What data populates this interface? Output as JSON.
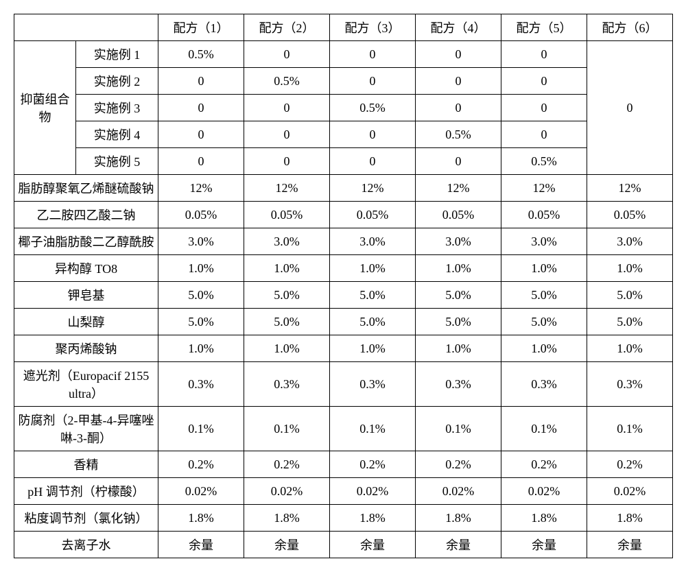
{
  "table": {
    "columns": [
      "",
      "",
      "配方（1）",
      "配方（2）",
      "配方（3）",
      "配方（4）",
      "配方（5）",
      "配方（6）"
    ],
    "group_label": "抑菌组合物",
    "group_rows": [
      {
        "name": "实施例 1",
        "vals": [
          "0.5%",
          "0",
          "0",
          "0",
          "0"
        ]
      },
      {
        "name": "实施例 2",
        "vals": [
          "0",
          "0.5%",
          "0",
          "0",
          "0"
        ]
      },
      {
        "name": "实施例 3",
        "vals": [
          "0",
          "0",
          "0.5%",
          "0",
          "0"
        ]
      },
      {
        "name": "实施例 4",
        "vals": [
          "0",
          "0",
          "0",
          "0.5%",
          "0"
        ]
      },
      {
        "name": "实施例 5",
        "vals": [
          "0",
          "0",
          "0",
          "0",
          "0.5%"
        ]
      }
    ],
    "group_last_col": "0",
    "rows": [
      {
        "name": "脂肪醇聚氧乙烯醚硫酸钠",
        "vals": [
          "12%",
          "12%",
          "12%",
          "12%",
          "12%",
          "12%"
        ]
      },
      {
        "name": "乙二胺四乙酸二钠",
        "vals": [
          "0.05%",
          "0.05%",
          "0.05%",
          "0.05%",
          "0.05%",
          "0.05%"
        ]
      },
      {
        "name": "椰子油脂肪酸二乙醇酰胺",
        "vals": [
          "3.0%",
          "3.0%",
          "3.0%",
          "3.0%",
          "3.0%",
          "3.0%"
        ]
      },
      {
        "name": "异构醇 TO8",
        "vals": [
          "1.0%",
          "1.0%",
          "1.0%",
          "1.0%",
          "1.0%",
          "1.0%"
        ]
      },
      {
        "name": "钾皂基",
        "vals": [
          "5.0%",
          "5.0%",
          "5.0%",
          "5.0%",
          "5.0%",
          "5.0%"
        ]
      },
      {
        "name": "山梨醇",
        "vals": [
          "5.0%",
          "5.0%",
          "5.0%",
          "5.0%",
          "5.0%",
          "5.0%"
        ]
      },
      {
        "name": "聚丙烯酸钠",
        "vals": [
          "1.0%",
          "1.0%",
          "1.0%",
          "1.0%",
          "1.0%",
          "1.0%"
        ]
      },
      {
        "name": "遮光剂（Europacif 2155 ultra）",
        "vals": [
          "0.3%",
          "0.3%",
          "0.3%",
          "0.3%",
          "0.3%",
          "0.3%"
        ]
      },
      {
        "name": "防腐剂（2-甲基-4-异噻唑啉-3-酮）",
        "vals": [
          "0.1%",
          "0.1%",
          "0.1%",
          "0.1%",
          "0.1%",
          "0.1%"
        ]
      },
      {
        "name": "香精",
        "vals": [
          "0.2%",
          "0.2%",
          "0.2%",
          "0.2%",
          "0.2%",
          "0.2%"
        ]
      },
      {
        "name": "pH 调节剂（柠檬酸）",
        "vals": [
          "0.02%",
          "0.02%",
          "0.02%",
          "0.02%",
          "0.02%",
          "0.02%"
        ]
      },
      {
        "name": "粘度调节剂（氯化钠）",
        "vals": [
          "1.8%",
          "1.8%",
          "1.8%",
          "1.8%",
          "1.8%",
          "1.8%"
        ]
      },
      {
        "name": "去离子水",
        "vals": [
          "余量",
          "余量",
          "余量",
          "余量",
          "余量",
          "余量"
        ]
      }
    ]
  }
}
